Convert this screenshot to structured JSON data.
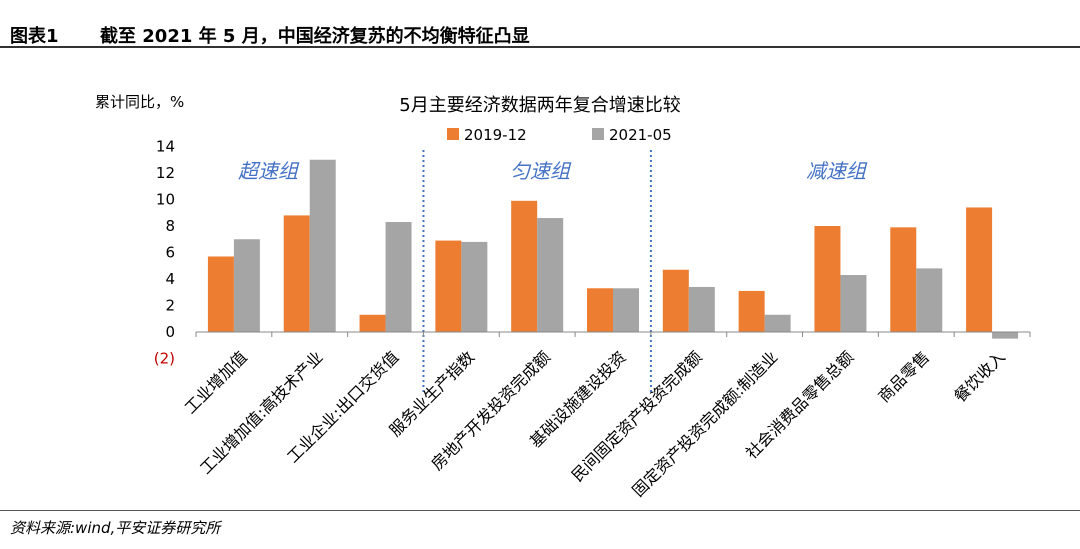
{
  "header": {
    "figure_label": "图表1",
    "figure_title": "截至 2021 年 5 月，中国经济复苏的不均衡特征凸显"
  },
  "footer": {
    "source": "资料来源:wind,平安证券研究所"
  },
  "colors": {
    "series_2019": "#ED7D31",
    "series_2021": "#A5A5A5",
    "group_label": "#4472C4",
    "divider": "#4472C4",
    "negative_tick": "#C00000"
  },
  "chart_data": {
    "type": "bar",
    "title": "5月主要经济数据两年复合增速比较",
    "ylabel": "累计同比，%",
    "xlabel": "",
    "ylim": [
      -2,
      14
    ],
    "yticks": [
      -2,
      0,
      2,
      4,
      6,
      8,
      10,
      12,
      14
    ],
    "ytick_labels": [
      "(2)",
      "0",
      "2",
      "4",
      "6",
      "8",
      "10",
      "12",
      "14"
    ],
    "grid": false,
    "legend_position": "top-center",
    "categories": [
      "工业增加值",
      "工业增加值:高技术产业",
      "工业企业:出口交货值",
      "服务业生产指数",
      "房地产开发投资完成额",
      "基础设施建设投资",
      "民间固定资产投资完成额",
      "固定资产投资完成额:制造业",
      "社会消费品零售总额",
      "商品零售",
      "餐饮收入"
    ],
    "series": [
      {
        "name": "2019-12",
        "values": [
          5.7,
          8.8,
          1.3,
          6.9,
          9.9,
          3.3,
          4.7,
          3.1,
          8.0,
          7.9,
          9.4
        ]
      },
      {
        "name": "2021-05",
        "values": [
          7.0,
          13.0,
          8.3,
          6.8,
          8.6,
          3.3,
          3.4,
          1.3,
          4.3,
          4.8,
          -0.5
        ]
      }
    ],
    "annotations": [
      {
        "text": "超速组",
        "group": "超速组"
      },
      {
        "text": "匀速组",
        "group": "匀速组"
      },
      {
        "text": "减速组",
        "group": "减速组"
      }
    ]
  }
}
